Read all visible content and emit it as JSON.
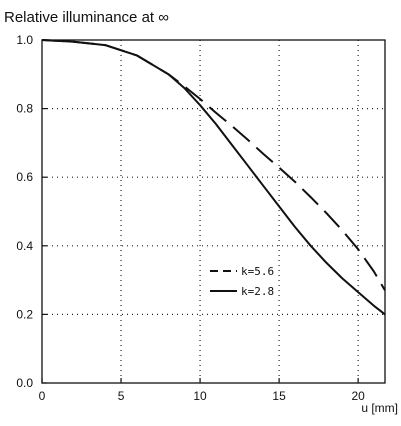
{
  "chart_data": {
    "type": "line",
    "title": "Relative illuminance at ∞",
    "xlabel": "u [mm]",
    "ylabel": "",
    "xlim": [
      0,
      21.7
    ],
    "ylim": [
      0,
      1.0
    ],
    "x_ticks": [
      0,
      5,
      10,
      15,
      20
    ],
    "y_ticks": [
      0.0,
      0.2,
      0.4,
      0.6,
      0.8,
      1.0
    ],
    "x_tick_labels": [
      "0",
      "5",
      "10",
      "15",
      "20"
    ],
    "y_tick_labels": [
      "0.0",
      "0.2",
      "0.4",
      "0.6",
      "0.8",
      "1.0"
    ],
    "grid": true,
    "legend_position": "center-right",
    "series": [
      {
        "name": "k=5.6",
        "style": "dashed",
        "x": [
          0,
          2,
          4,
          6,
          8,
          9,
          10,
          11,
          12,
          13,
          14,
          15,
          16,
          17,
          18,
          19,
          20,
          21,
          21.7
        ],
        "y": [
          1.0,
          0.995,
          0.985,
          0.955,
          0.9,
          0.865,
          0.828,
          0.788,
          0.75,
          0.71,
          0.668,
          0.628,
          0.587,
          0.542,
          0.495,
          0.445,
          0.39,
          0.325,
          0.27
        ]
      },
      {
        "name": "k=2.8",
        "style": "solid",
        "x": [
          0,
          2,
          4,
          6,
          8,
          9,
          10,
          11,
          12,
          13,
          14,
          15,
          16,
          17,
          18,
          19,
          20,
          21,
          21.7
        ],
        "y": [
          1.0,
          0.995,
          0.985,
          0.955,
          0.9,
          0.86,
          0.81,
          0.755,
          0.695,
          0.635,
          0.575,
          0.515,
          0.455,
          0.4,
          0.35,
          0.305,
          0.265,
          0.225,
          0.2
        ]
      }
    ]
  }
}
